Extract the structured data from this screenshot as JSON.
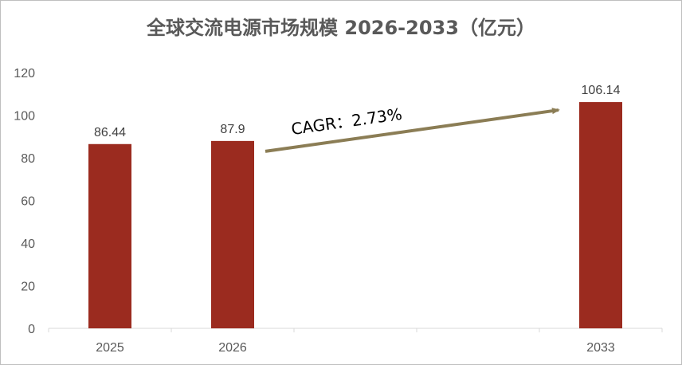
{
  "chart_data": {
    "type": "bar",
    "title": "全球交流电源市场规模 2026-2033（亿元）",
    "categories": [
      "2025",
      "2026",
      "",
      "",
      "2033"
    ],
    "values": [
      86.44,
      87.9,
      null,
      null,
      106.14
    ],
    "data_labels": [
      "86.44",
      "87.9",
      "",
      "",
      "106.14"
    ],
    "ylim": [
      0,
      120
    ],
    "yticks": [
      0,
      20,
      40,
      60,
      80,
      100,
      120
    ],
    "grid": false,
    "bar_color": "#9B2B1F",
    "annotation": {
      "text": "CAGR：2.73%",
      "color": "#8B7D55",
      "from_category": 1,
      "to_category": 4
    }
  }
}
